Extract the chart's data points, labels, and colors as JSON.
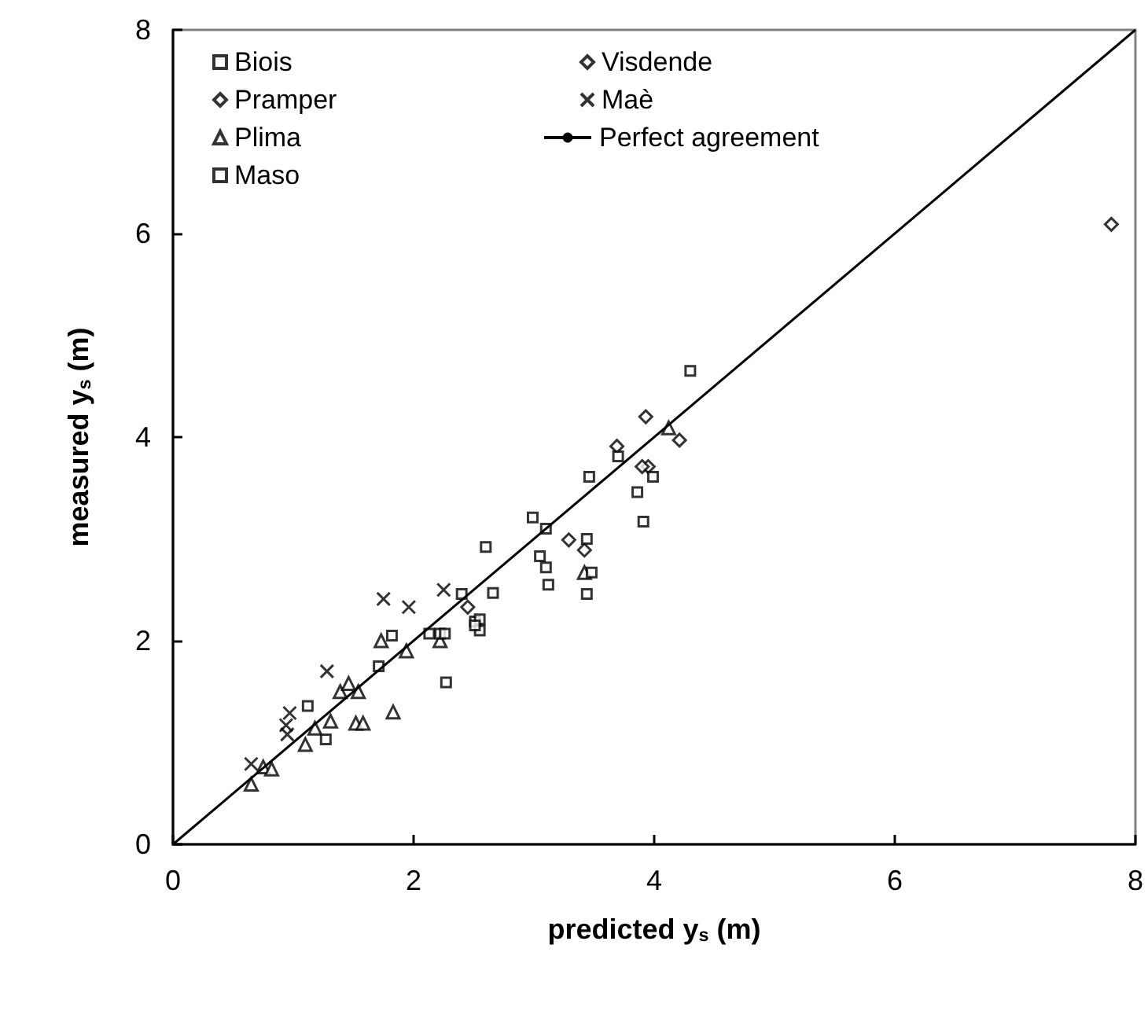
{
  "chart_data": {
    "type": "scatter",
    "xlabel": "predicted y$_{s}$ (m)",
    "ylabel": "measured y$_{s}$ (m)",
    "xlim": [
      0,
      8
    ],
    "ylim": [
      0,
      8
    ],
    "xticks": [
      0,
      2,
      4,
      6,
      8
    ],
    "yticks": [
      0,
      2,
      4,
      6,
      8
    ],
    "grid": false,
    "legend": "top left",
    "series": [
      {
        "name": "Biois",
        "color": "#000000",
        "marker": "square",
        "x": [
          4.3,
          2.99,
          1.12
        ],
        "values": [
          4.65,
          3.21,
          1.36
        ]
      },
      {
        "name": "Pramper",
        "color": "#000000",
        "marker": "diamond",
        "x": [
          3.29,
          3.42,
          3.95,
          3.69
        ],
        "values": [
          2.99,
          2.89,
          3.71,
          3.91
        ]
      },
      {
        "name": "Plima",
        "color": "#000000",
        "marker": "triangle",
        "x": [
          0.65,
          0.75,
          0.82,
          1.1,
          1.18,
          1.31,
          1.39,
          1.46,
          1.54,
          1.52,
          1.58,
          1.83,
          1.73,
          1.94,
          2.22,
          3.42,
          4.12
        ],
        "values": [
          0.59,
          0.76,
          0.74,
          0.98,
          1.14,
          1.21,
          1.5,
          1.58,
          1.5,
          1.19,
          1.19,
          1.3,
          2.0,
          1.9,
          2.0,
          2.67,
          4.09
        ]
      },
      {
        "name": "Maso",
        "color": "#000000",
        "marker": "square",
        "x": [
          1.27,
          1.71,
          1.82,
          2.13,
          2.22,
          2.27,
          2.26,
          2.4,
          2.51,
          2.55,
          2.55,
          2.51,
          2.6,
          2.66,
          3.05,
          3.1,
          3.1,
          3.12,
          3.44,
          3.44,
          3.48,
          3.46,
          3.86,
          3.91,
          3.99,
          3.7
        ],
        "values": [
          1.03,
          1.75,
          2.05,
          2.07,
          2.07,
          1.59,
          2.07,
          2.46,
          2.19,
          2.21,
          2.1,
          2.15,
          2.92,
          2.47,
          2.83,
          2.72,
          3.1,
          2.55,
          3.0,
          2.46,
          2.67,
          3.61,
          3.46,
          3.17,
          3.61,
          3.81
        ]
      },
      {
        "name": "Visdende",
        "color": "#000000",
        "marker": "diamond",
        "x": [
          2.45,
          3.9,
          4.21,
          3.93,
          7.8
        ],
        "values": [
          2.33,
          3.71,
          3.97,
          4.2,
          6.09
        ]
      },
      {
        "name": "Maè",
        "color": "#000000",
        "marker": "cross",
        "x": [
          0.65,
          0.94,
          0.95,
          0.97,
          1.28,
          1.75,
          1.96,
          2.25
        ],
        "values": [
          0.79,
          1.17,
          1.08,
          1.29,
          1.7,
          2.41,
          2.33,
          2.5
        ]
      },
      {
        "name": "Perfect agreement",
        "type": "line",
        "color": "#000000",
        "marker": "none",
        "line_style": "solid",
        "x": [
          0,
          8
        ],
        "values": [
          0,
          8
        ]
      }
    ]
  }
}
